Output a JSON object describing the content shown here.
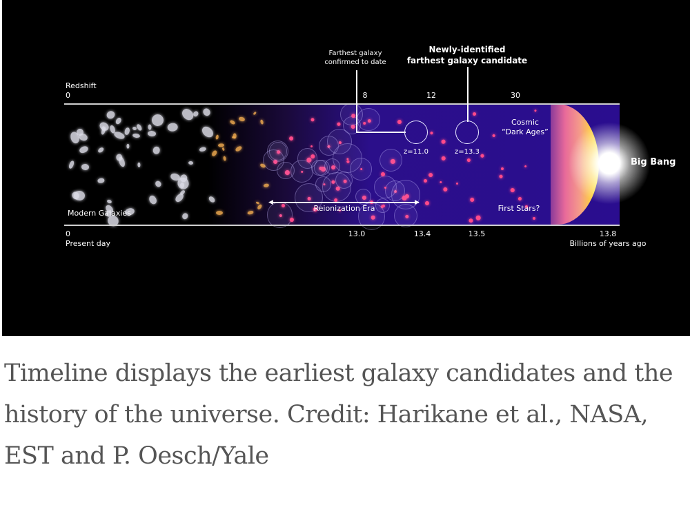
{
  "figure": {
    "redshift_label": "Redshift",
    "redshift_ticks": [
      "0",
      "8",
      "12",
      "30"
    ],
    "time_ticks": [
      "0",
      "13.0",
      "13.4",
      "13.5",
      "13.8"
    ],
    "present_day": "Present day",
    "time_unit": "Billions of years ago",
    "modern_galaxies": "Modern Galaxies",
    "reionization_era": "Reionization Era",
    "first_stars": "First Stars?",
    "dark_ages_line1": "Cosmic",
    "dark_ages_line2": "“Dark Ages”",
    "big_bang": "Big Bang",
    "confirmed_line1": "Farthest galaxy",
    "confirmed_line2": "confirmed to date",
    "candidate_line1": "Newly-identified",
    "candidate_line2": "farthest galaxy candidate",
    "confirmed_z": "z=11.0",
    "candidate_z": "z=13.3",
    "colors": {
      "background": "#000000",
      "early_universe": "#2a0d8f",
      "galaxy_pink": "#ff4a8a",
      "big_bang_yellow": "#fff23a"
    }
  },
  "caption": "Timeline displays the earliest galaxy candidates and the history of the universe. Credit: Harikane et al., NASA, EST and P. Oesch/Yale"
}
